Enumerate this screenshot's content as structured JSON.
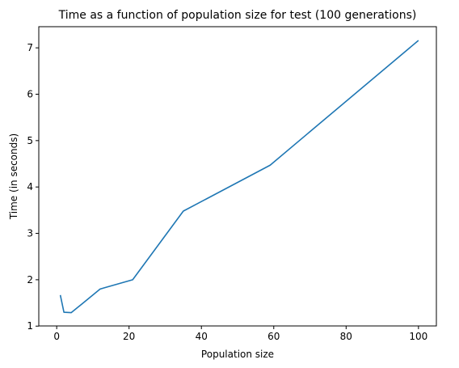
{
  "chart_data": {
    "type": "line",
    "title": "Time as a function of population size for test (100 generations)",
    "xlabel": "Population size",
    "ylabel": "Time (in seconds)",
    "xlim": [
      -4.95,
      104.95
    ],
    "ylim": [
      1.004,
      7.456
    ],
    "xticks": [
      0,
      20,
      40,
      60,
      80,
      100
    ],
    "yticks": [
      1,
      2,
      3,
      4,
      5,
      6,
      7
    ],
    "grid": false,
    "series": [
      {
        "color": "#1f77b4",
        "x": [
          1,
          2,
          4,
          7,
          12,
          21,
          35,
          59,
          100
        ],
        "y": [
          1.67,
          1.3,
          1.29,
          1.48,
          1.8,
          2.0,
          3.48,
          4.47,
          7.16
        ]
      }
    ]
  }
}
